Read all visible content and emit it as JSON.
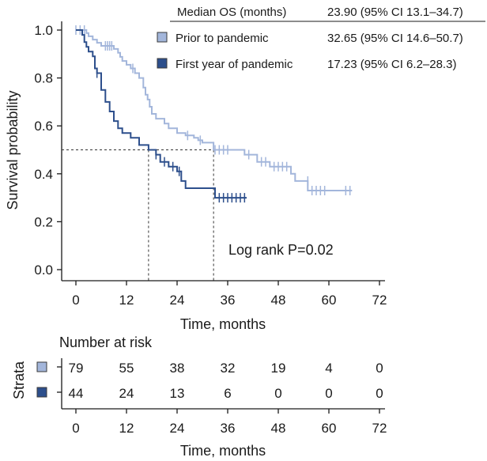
{
  "chart_data": {
    "type": "line",
    "subtype": "kaplan-meier",
    "xlabel": "Time, months",
    "ylabel": "Survival probability",
    "xlim": [
      0,
      72
    ],
    "ylim": [
      0,
      1
    ],
    "xticks": [
      0,
      12,
      24,
      36,
      48,
      60,
      72
    ],
    "yticks": [
      "0.0",
      "0.2",
      "0.4",
      "0.6",
      "0.8",
      "1.0"
    ],
    "annotation": "Log rank P=0.02",
    "median_line": {
      "y": 0.5,
      "x_values": [
        17.23,
        32.65
      ]
    },
    "legend": {
      "header_label": "Median OS (months)",
      "header_value": "23.90 (95% CI 13.1–34.7)",
      "entries": [
        {
          "name": "Prior to pandemic",
          "value": "32.65 (95% CI 14.6–50.7)"
        },
        {
          "name": "First year of pandemic",
          "value": "17.23 (95% CI 6.2–28.3)"
        }
      ]
    },
    "series": [
      {
        "name": "Prior to pandemic",
        "color": "#a3b6db",
        "steps": [
          [
            0,
            1.0
          ],
          [
            2.5,
            0.987
          ],
          [
            3,
            0.974
          ],
          [
            4,
            0.96
          ],
          [
            5,
            0.947
          ],
          [
            6,
            0.934
          ],
          [
            9,
            0.921
          ],
          [
            10,
            0.905
          ],
          [
            10.5,
            0.888
          ],
          [
            11,
            0.871
          ],
          [
            12,
            0.855
          ],
          [
            13,
            0.84
          ],
          [
            14,
            0.82
          ],
          [
            15,
            0.8
          ],
          [
            16,
            0.76
          ],
          [
            16.5,
            0.73
          ],
          [
            17,
            0.71
          ],
          [
            17.5,
            0.68
          ],
          [
            18,
            0.65
          ],
          [
            19,
            0.63
          ],
          [
            21,
            0.61
          ],
          [
            22,
            0.59
          ],
          [
            24,
            0.57
          ],
          [
            26,
            0.56
          ],
          [
            28,
            0.55
          ],
          [
            29,
            0.54
          ],
          [
            30,
            0.53
          ],
          [
            32.65,
            0.5
          ],
          [
            40,
            0.48
          ],
          [
            43,
            0.45
          ],
          [
            46,
            0.43
          ],
          [
            51,
            0.4
          ],
          [
            52,
            0.37
          ],
          [
            55,
            0.33
          ],
          [
            65.5,
            0.33
          ]
        ],
        "censors": [
          [
            0,
            1.0
          ],
          [
            1,
            1.0
          ],
          [
            2,
            1.0
          ],
          [
            7,
            0.934
          ],
          [
            7.5,
            0.934
          ],
          [
            8,
            0.934
          ],
          [
            8.5,
            0.934
          ],
          [
            13.5,
            0.84
          ],
          [
            26.5,
            0.56
          ],
          [
            29.5,
            0.54
          ],
          [
            33,
            0.5
          ],
          [
            34,
            0.5
          ],
          [
            35,
            0.5
          ],
          [
            36,
            0.5
          ],
          [
            41,
            0.48
          ],
          [
            44,
            0.45
          ],
          [
            45,
            0.45
          ],
          [
            47,
            0.43
          ],
          [
            48,
            0.43
          ],
          [
            49,
            0.43
          ],
          [
            50,
            0.43
          ],
          [
            55,
            0.37
          ],
          [
            56,
            0.33
          ],
          [
            57,
            0.33
          ],
          [
            58,
            0.33
          ],
          [
            59,
            0.33
          ],
          [
            64,
            0.33
          ],
          [
            65,
            0.33
          ]
        ],
        "at_risk": [
          79,
          55,
          38,
          32,
          19,
          4,
          0
        ]
      },
      {
        "name": "First year of pandemic",
        "color": "#2d4f8c",
        "steps": [
          [
            0,
            1.0
          ],
          [
            1.5,
            0.98
          ],
          [
            2,
            0.95
          ],
          [
            2.5,
            0.93
          ],
          [
            3,
            0.91
          ],
          [
            4,
            0.89
          ],
          [
            4.5,
            0.84
          ],
          [
            5,
            0.82
          ],
          [
            6,
            0.75
          ],
          [
            7,
            0.7
          ],
          [
            8,
            0.66
          ],
          [
            9,
            0.62
          ],
          [
            10,
            0.59
          ],
          [
            11,
            0.57
          ],
          [
            13,
            0.55
          ],
          [
            15,
            0.52
          ],
          [
            16,
            0.52
          ],
          [
            17.23,
            0.5
          ],
          [
            19,
            0.48
          ],
          [
            20,
            0.45
          ],
          [
            22,
            0.43
          ],
          [
            24,
            0.41
          ],
          [
            25,
            0.37
          ],
          [
            26,
            0.34
          ],
          [
            33,
            0.3
          ],
          [
            40.5,
            0.3
          ]
        ],
        "censors": [
          [
            5,
            0.82
          ],
          [
            19,
            0.48
          ],
          [
            21,
            0.45
          ],
          [
            23,
            0.43
          ],
          [
            24.5,
            0.41
          ],
          [
            34,
            0.3
          ],
          [
            35,
            0.3
          ],
          [
            36,
            0.3
          ],
          [
            37,
            0.3
          ],
          [
            38,
            0.3
          ],
          [
            39,
            0.3
          ],
          [
            40,
            0.3
          ]
        ],
        "at_risk": [
          44,
          24,
          13,
          6,
          0,
          0,
          0
        ]
      }
    ],
    "risk_table": {
      "title": "Number at risk",
      "strata_label": "Strata",
      "xlabel": "Time, months",
      "xticks": [
        0,
        12,
        24,
        36,
        48,
        60,
        72
      ]
    }
  }
}
